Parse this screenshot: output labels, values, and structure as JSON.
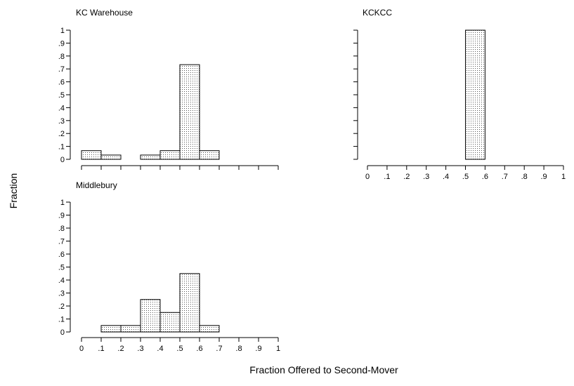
{
  "figure": {
    "ylabel": "Fraction",
    "xlabel": "Fraction Offered to Second-Mover"
  },
  "chart_data": [
    {
      "type": "bar",
      "title": "KC Warehouse",
      "bin_edges": [
        0,
        0.1,
        0.2,
        0.3,
        0.4,
        0.5,
        0.6,
        0.7,
        0.8,
        0.9,
        1
      ],
      "values": [
        0.067,
        0.033,
        0,
        0.033,
        0.067,
        0.733,
        0.067,
        0,
        0,
        0
      ],
      "xlim": [
        0,
        1
      ],
      "ylim": [
        0,
        1
      ],
      "xticks": [
        "0",
        ".1",
        ".2",
        ".3",
        ".4",
        ".5",
        ".6",
        ".7",
        ".8",
        ".9",
        "1"
      ],
      "yticks": [
        "0",
        ".1",
        ".2",
        ".3",
        ".4",
        ".5",
        ".6",
        ".7",
        ".8",
        ".9",
        "1"
      ],
      "show_xtick_labels": false
    },
    {
      "type": "bar",
      "title": "KCKCC",
      "bin_edges": [
        0,
        0.1,
        0.2,
        0.3,
        0.4,
        0.5,
        0.6,
        0.7,
        0.8,
        0.9,
        1
      ],
      "values": [
        0,
        0,
        0,
        0,
        0,
        1,
        0,
        0,
        0,
        0
      ],
      "xlim": [
        0,
        1
      ],
      "ylim": [
        0,
        1
      ],
      "xticks": [
        "0",
        ".1",
        ".2",
        ".3",
        ".4",
        ".5",
        ".6",
        ".7",
        ".8",
        ".9",
        "1"
      ],
      "yticks": [],
      "show_xtick_labels": true
    },
    {
      "type": "bar",
      "title": "Middlebury",
      "bin_edges": [
        0,
        0.1,
        0.2,
        0.3,
        0.4,
        0.5,
        0.6,
        0.7,
        0.8,
        0.9,
        1
      ],
      "values": [
        0,
        0.05,
        0.05,
        0.25,
        0.15,
        0.45,
        0.05,
        0,
        0,
        0
      ],
      "xlim": [
        0,
        1
      ],
      "ylim": [
        0,
        1
      ],
      "xticks": [
        "0",
        ".1",
        ".2",
        ".3",
        ".4",
        ".5",
        ".6",
        ".7",
        ".8",
        ".9",
        "1"
      ],
      "yticks": [
        "0",
        ".1",
        ".2",
        ".3",
        ".4",
        ".5",
        ".6",
        ".7",
        ".8",
        ".9",
        "1"
      ],
      "show_xtick_labels": true
    }
  ]
}
